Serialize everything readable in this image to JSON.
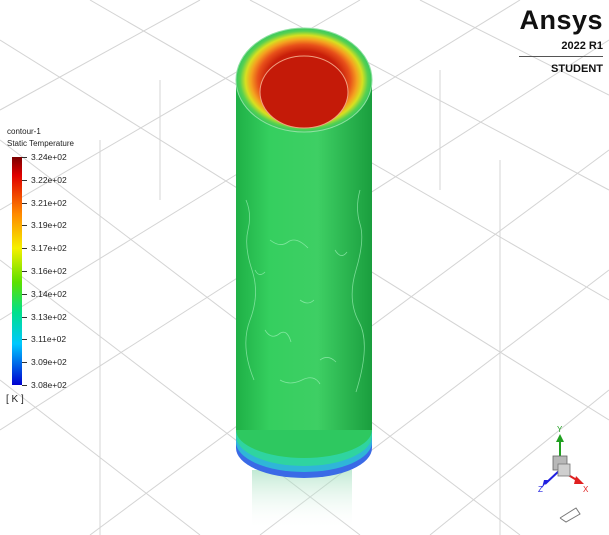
{
  "contour": {
    "name": "contour-1",
    "variable": "Static Temperature",
    "unit": "[ K ]",
    "levels": [
      "3.24e+02",
      "3.22e+02",
      "3.21e+02",
      "3.19e+02",
      "3.17e+02",
      "3.16e+02",
      "3.14e+02",
      "3.13e+02",
      "3.11e+02",
      "3.09e+02",
      "3.08e+02"
    ],
    "colormap": [
      "#8b0000",
      "#ff0000",
      "#ff8000",
      "#ffff00",
      "#00ff00",
      "#00ffff",
      "#0000ff"
    ]
  },
  "logo": {
    "brand": "Ansys",
    "version": "2022 R1",
    "edition": "STUDENT"
  },
  "triad": {
    "x_label": "X",
    "y_label": "Y",
    "z_label": "Z",
    "x_color": "#e02020",
    "y_color": "#20a020",
    "z_color": "#2020e0"
  },
  "colors": {
    "cylinder_body": "#2ec85a",
    "cylinder_hot": "#c81e0a",
    "grid": "#cfcfcf"
  }
}
